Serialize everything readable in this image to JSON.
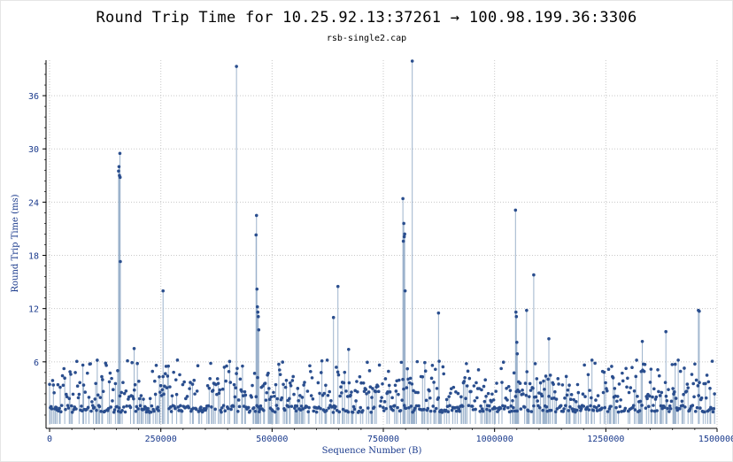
{
  "chart_data": {
    "type": "scatter",
    "title": "Round Trip Time for 10.25.92.13:37261 → 100.98.199.36:3306",
    "subtitle": "rsb-single2.cap",
    "xlabel": "Sequence Number (B)",
    "ylabel": "Round Trip Time (ms)",
    "xlim": [
      -8000,
      1500000
    ],
    "ylim": [
      -1.5,
      40
    ],
    "xticks": [
      0,
      250000,
      500000,
      750000,
      1000000,
      1250000,
      1500000
    ],
    "yticks": [
      6,
      12,
      18,
      24,
      30,
      36
    ],
    "grid": true,
    "colors": {
      "series": "#2a4e8e",
      "stem": "#9db3cc",
      "grid": "#c8c8c8",
      "axis": "#000000"
    },
    "series": [
      {
        "style": "impulse",
        "baseline_band": [
          0.3,
          6.2
        ],
        "points": [
          [
            155000,
            27.5
          ],
          [
            156000,
            28.0
          ],
          [
            157000,
            27.0
          ],
          [
            158000,
            29.5
          ],
          [
            158500,
            26.8
          ],
          [
            159000,
            17.3
          ],
          [
            190000,
            7.5
          ],
          [
            255000,
            14.0
          ],
          [
            420000,
            39.3
          ],
          [
            464000,
            20.3
          ],
          [
            465000,
            22.5
          ],
          [
            466000,
            14.2
          ],
          [
            467000,
            12.2
          ],
          [
            468000,
            11.6
          ],
          [
            469000,
            11.1
          ],
          [
            470000,
            9.6
          ],
          [
            638000,
            11.0
          ],
          [
            648000,
            14.5
          ],
          [
            672000,
            7.4
          ],
          [
            794000,
            24.4
          ],
          [
            795000,
            19.6
          ],
          [
            796000,
            21.6
          ],
          [
            797000,
            20.1
          ],
          [
            798000,
            20.4
          ],
          [
            799000,
            14.0
          ],
          [
            815000,
            39.9
          ],
          [
            874000,
            11.5
          ],
          [
            1047000,
            23.1
          ],
          [
            1048000,
            11.6
          ],
          [
            1049000,
            11.1
          ],
          [
            1050000,
            8.2
          ],
          [
            1051000,
            6.9
          ],
          [
            1072000,
            11.8
          ],
          [
            1088000,
            15.8
          ],
          [
            1122000,
            8.6
          ],
          [
            1332000,
            8.3
          ],
          [
            1385000,
            9.4
          ],
          [
            1458000,
            11.8
          ],
          [
            1460000,
            11.7
          ]
        ]
      }
    ]
  }
}
